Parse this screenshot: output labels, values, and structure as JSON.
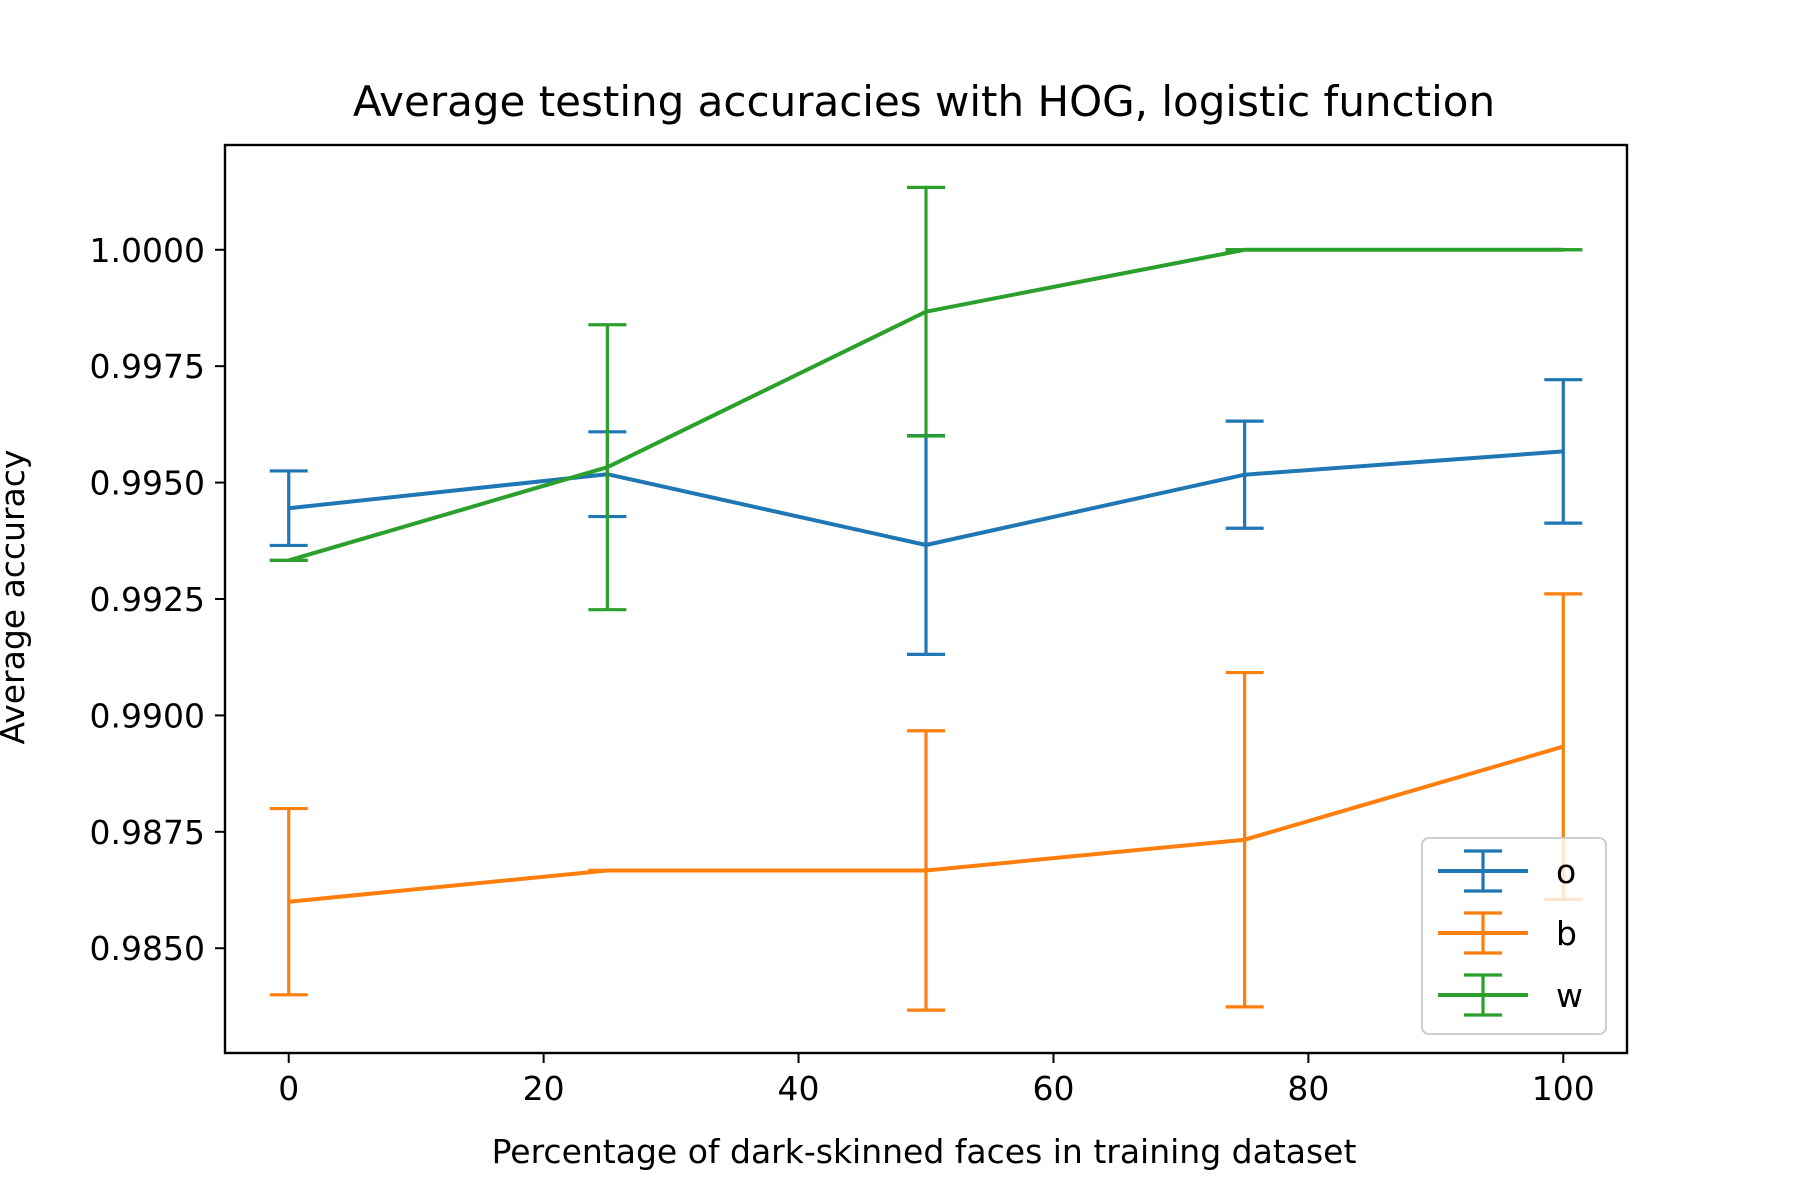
{
  "chart_data": {
    "type": "line",
    "title": "Average testing accuracies with HOG, logistic function",
    "xlabel": "Percentage of dark-skinned faces in training dataset",
    "ylabel": "Average accuracy",
    "xlim": [
      -5,
      105
    ],
    "ylim": [
      0.98275,
      1.00225
    ],
    "xticks": [
      0,
      20,
      40,
      60,
      80,
      100
    ],
    "xtick_labels": [
      "0",
      "20",
      "40",
      "60",
      "80",
      "100"
    ],
    "yticks": [
      0.985,
      0.9875,
      0.99,
      0.9925,
      0.995,
      0.9975,
      1.0
    ],
    "ytick_labels": [
      "0.9850",
      "0.9875",
      "0.9900",
      "0.9925",
      "0.9950",
      "0.9975",
      "1.0000"
    ],
    "grid": false,
    "legend_position": "lower right",
    "series": [
      {
        "name": "o",
        "color": "#1f77b4",
        "x": [
          0,
          25,
          50,
          75,
          100
        ],
        "y": [
          0.99445,
          0.99518,
          0.99366,
          0.99517,
          0.99567
        ],
        "err": [
          0.0008,
          0.00091,
          0.00235,
          0.00115,
          0.00154
        ]
      },
      {
        "name": "b",
        "color": "#ff7f0e",
        "x": [
          0,
          25,
          50,
          75,
          100
        ],
        "y": [
          0.986,
          0.98667,
          0.98667,
          0.98733,
          0.98933
        ],
        "err": [
          0.002,
          0.0,
          0.003,
          0.00359,
          0.00328
        ]
      },
      {
        "name": "w",
        "color": "#2ca02c",
        "x": [
          0,
          25,
          50,
          75,
          100
        ],
        "y": [
          0.99333,
          0.99533,
          0.99867,
          1.0,
          1.0
        ],
        "err": [
          0.0,
          0.00306,
          0.00267,
          0.0,
          0.0
        ]
      }
    ]
  }
}
